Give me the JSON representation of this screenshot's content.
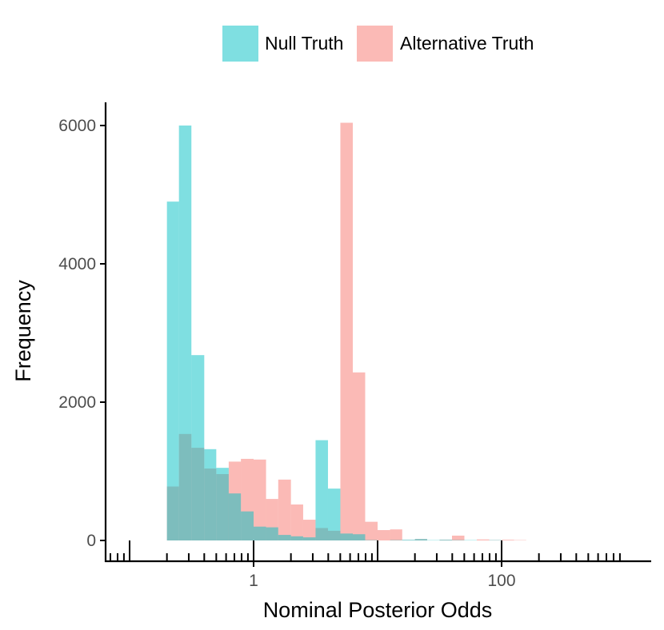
{
  "chart_data": {
    "type": "bar",
    "subtype": "overlapping-histogram",
    "xlabel": "Nominal Posterior Odds",
    "ylabel": "Frequency",
    "x_scale": "log10",
    "x_range": [
      0.05,
      1000
    ],
    "ylim": [
      -300,
      6600
    ],
    "x_tick_labels": [
      {
        "value": 1,
        "label": "1"
      },
      {
        "value": 100,
        "label": "100"
      }
    ],
    "y_tick_labels": [
      {
        "value": 0,
        "label": "0"
      },
      {
        "value": 2000,
        "label": "2000"
      },
      {
        "value": 4000,
        "label": "4000"
      },
      {
        "value": 6000,
        "label": "6000"
      }
    ],
    "grid": false,
    "legend_position": "top",
    "bins": [
      {
        "x0": 0.09,
        "x1": 0.2
      },
      {
        "x0": 0.2,
        "x1": 0.25
      },
      {
        "x0": 0.25,
        "x1": 0.315
      },
      {
        "x0": 0.315,
        "x1": 0.4
      },
      {
        "x0": 0.4,
        "x1": 0.5
      },
      {
        "x0": 0.5,
        "x1": 0.63
      },
      {
        "x0": 0.63,
        "x1": 0.79
      },
      {
        "x0": 0.79,
        "x1": 1.0
      },
      {
        "x0": 1.0,
        "x1": 1.26
      },
      {
        "x0": 1.26,
        "x1": 1.58
      },
      {
        "x0": 1.58,
        "x1": 2.0
      },
      {
        "x0": 2.0,
        "x1": 2.51
      },
      {
        "x0": 2.51,
        "x1": 3.16
      },
      {
        "x0": 3.16,
        "x1": 3.98
      },
      {
        "x0": 3.98,
        "x1": 5.01
      },
      {
        "x0": 5.01,
        "x1": 6.31
      },
      {
        "x0": 6.31,
        "x1": 7.94
      },
      {
        "x0": 7.94,
        "x1": 10.0
      },
      {
        "x0": 10.0,
        "x1": 12.6
      },
      {
        "x0": 12.6,
        "x1": 15.8
      },
      {
        "x0": 15.8,
        "x1": 20.0
      },
      {
        "x0": 20.0,
        "x1": 25.1
      },
      {
        "x0": 25.1,
        "x1": 31.6
      },
      {
        "x0": 31.6,
        "x1": 39.8
      },
      {
        "x0": 39.8,
        "x1": 50.1
      },
      {
        "x0": 50.1,
        "x1": 63.1
      },
      {
        "x0": 63.1,
        "x1": 79.4
      },
      {
        "x0": 79.4,
        "x1": 100.0
      },
      {
        "x0": 100.0,
        "x1": 126.0
      },
      {
        "x0": 126.0,
        "x1": 158.0
      },
      {
        "x0": 158.0,
        "x1": 200.0
      },
      {
        "x0": 200.0,
        "x1": 251.0
      },
      {
        "x0": 251.0,
        "x1": 316.0
      },
      {
        "x0": 316.0,
        "x1": 398.0
      },
      {
        "x0": 398.0,
        "x1": 501.0
      }
    ],
    "series": [
      {
        "name": "Null Truth",
        "color": "#00BFC4",
        "values": [
          0,
          4900,
          6000,
          2680,
          1320,
          1050,
          680,
          420,
          200,
          190,
          80,
          60,
          45,
          1450,
          750,
          100,
          90,
          5,
          0,
          5,
          10,
          20,
          5,
          10,
          5,
          5,
          0,
          5,
          0,
          0,
          0,
          0,
          0,
          0,
          0
        ]
      },
      {
        "name": "Alternative Truth",
        "color": "#F8766D",
        "values": [
          0,
          780,
          1540,
          1340,
          1040,
          960,
          1140,
          1180,
          1170,
          600,
          880,
          520,
          300,
          180,
          140,
          6040,
          2430,
          270,
          150,
          160,
          5,
          20,
          0,
          10,
          70,
          0,
          15,
          5,
          10,
          5,
          0,
          0,
          0,
          0,
          0
        ]
      }
    ]
  },
  "colors": {
    "null": "#00BFC4",
    "alternative": "#F8766D",
    "overlap": "#7AAFA9",
    "axis": "#000000"
  }
}
